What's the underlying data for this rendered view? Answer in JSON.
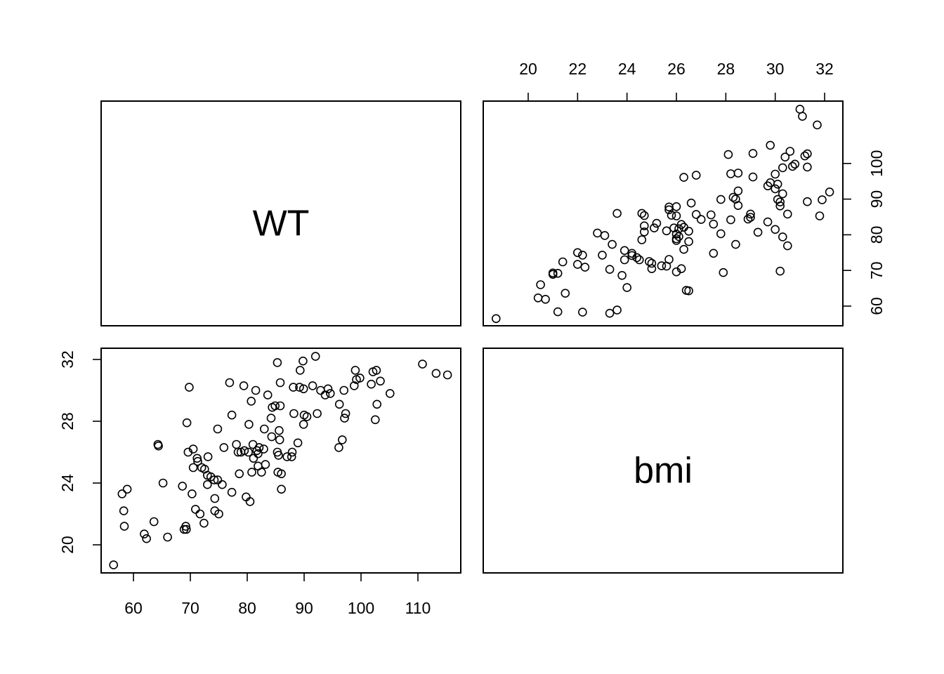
{
  "chart_data": {
    "type": "scatter",
    "layout": "pairs-matrix",
    "variables": [
      "WT",
      "bmi"
    ],
    "grid": false,
    "ranges": {
      "WT": [
        55,
        117
      ],
      "bmi": [
        18,
        33
      ]
    },
    "ticks": {
      "WT_bottom": [
        60,
        70,
        80,
        90,
        100,
        110
      ],
      "WT_right": [
        60,
        70,
        80,
        90,
        100
      ],
      "bmi_top": [
        20,
        22,
        24,
        26,
        28,
        30,
        32
      ],
      "bmi_left": [
        20,
        24,
        28,
        32
      ]
    },
    "points": [
      [
        56.5,
        18.7
      ],
      [
        58.0,
        23.3
      ],
      [
        58.3,
        22.2
      ],
      [
        58.4,
        21.2
      ],
      [
        58.9,
        23.6
      ],
      [
        61.9,
        20.7
      ],
      [
        62.3,
        20.4
      ],
      [
        63.6,
        21.5
      ],
      [
        64.3,
        26.5
      ],
      [
        64.4,
        26.4
      ],
      [
        65.2,
        24.0
      ],
      [
        66.0,
        20.5
      ],
      [
        68.6,
        23.8
      ],
      [
        68.9,
        21.0
      ],
      [
        69.2,
        21.2
      ],
      [
        69.3,
        21.0
      ],
      [
        69.4,
        27.9
      ],
      [
        69.6,
        26.0
      ],
      [
        69.8,
        30.2
      ],
      [
        70.3,
        23.3
      ],
      [
        70.5,
        26.2
      ],
      [
        70.5,
        25.0
      ],
      [
        70.9,
        22.3
      ],
      [
        71.2,
        25.6
      ],
      [
        71.3,
        25.4
      ],
      [
        71.7,
        22.0
      ],
      [
        72.0,
        25.0
      ],
      [
        72.4,
        21.4
      ],
      [
        72.5,
        24.9
      ],
      [
        73.0,
        23.9
      ],
      [
        73.0,
        24.5
      ],
      [
        73.1,
        25.7
      ],
      [
        73.6,
        24.4
      ],
      [
        74.2,
        24.2
      ],
      [
        74.3,
        22.2
      ],
      [
        74.3,
        23.0
      ],
      [
        74.8,
        24.2
      ],
      [
        74.8,
        27.5
      ],
      [
        75.0,
        22.0
      ],
      [
        75.6,
        23.9
      ],
      [
        75.9,
        26.3
      ],
      [
        76.9,
        30.5
      ],
      [
        77.3,
        28.4
      ],
      [
        77.3,
        23.4
      ],
      [
        78.1,
        26.5
      ],
      [
        78.4,
        26.0
      ],
      [
        78.6,
        24.6
      ],
      [
        78.9,
        26.0
      ],
      [
        79.4,
        30.3
      ],
      [
        79.5,
        26.1
      ],
      [
        79.8,
        23.1
      ],
      [
        80.2,
        26.0
      ],
      [
        80.3,
        27.8
      ],
      [
        80.5,
        22.8
      ],
      [
        80.7,
        29.3
      ],
      [
        80.8,
        24.7
      ],
      [
        81.0,
        26.5
      ],
      [
        81.1,
        25.6
      ],
      [
        81.5,
        30.0
      ],
      [
        81.7,
        26.1
      ],
      [
        81.9,
        25.9
      ],
      [
        81.9,
        25.1
      ],
      [
        82.1,
        26.3
      ],
      [
        82.5,
        24.7
      ],
      [
        82.9,
        26.2
      ],
      [
        83.0,
        27.5
      ],
      [
        83.2,
        25.2
      ],
      [
        83.6,
        29.7
      ],
      [
        84.2,
        28.2
      ],
      [
        84.3,
        27.0
      ],
      [
        84.4,
        28.9
      ],
      [
        84.9,
        29.0
      ],
      [
        85.3,
        26.0
      ],
      [
        85.3,
        31.8
      ],
      [
        85.4,
        24.7
      ],
      [
        85.5,
        25.8
      ],
      [
        85.6,
        27.4
      ],
      [
        85.7,
        26.8
      ],
      [
        85.8,
        30.5
      ],
      [
        85.8,
        29.0
      ],
      [
        86.0,
        24.6
      ],
      [
        86.0,
        23.6
      ],
      [
        87.0,
        25.7
      ],
      [
        87.8,
        25.7
      ],
      [
        87.9,
        26.0
      ],
      [
        88.1,
        30.2
      ],
      [
        88.2,
        28.5
      ],
      [
        88.9,
        26.6
      ],
      [
        89.2,
        30.2
      ],
      [
        89.3,
        31.3
      ],
      [
        89.8,
        31.9
      ],
      [
        89.9,
        30.1
      ],
      [
        89.9,
        27.8
      ],
      [
        90.0,
        28.4
      ],
      [
        90.5,
        28.3
      ],
      [
        91.5,
        30.3
      ],
      [
        92.0,
        32.2
      ],
      [
        92.3,
        28.5
      ],
      [
        92.9,
        30.0
      ],
      [
        93.7,
        29.7
      ],
      [
        94.2,
        30.1
      ],
      [
        94.6,
        29.8
      ],
      [
        96.1,
        26.3
      ],
      [
        96.2,
        29.1
      ],
      [
        96.7,
        26.8
      ],
      [
        97.0,
        30.0
      ],
      [
        97.1,
        28.2
      ],
      [
        97.3,
        28.5
      ],
      [
        98.8,
        30.3
      ],
      [
        99.0,
        31.3
      ],
      [
        99.2,
        30.7
      ],
      [
        99.8,
        30.8
      ],
      [
        101.8,
        30.4
      ],
      [
        102.1,
        31.2
      ],
      [
        102.5,
        28.1
      ],
      [
        102.7,
        31.3
      ],
      [
        102.8,
        29.1
      ],
      [
        103.4,
        30.6
      ],
      [
        105.1,
        29.8
      ],
      [
        110.8,
        31.7
      ],
      [
        113.2,
        31.1
      ],
      [
        115.2,
        31.0
      ]
    ]
  }
}
